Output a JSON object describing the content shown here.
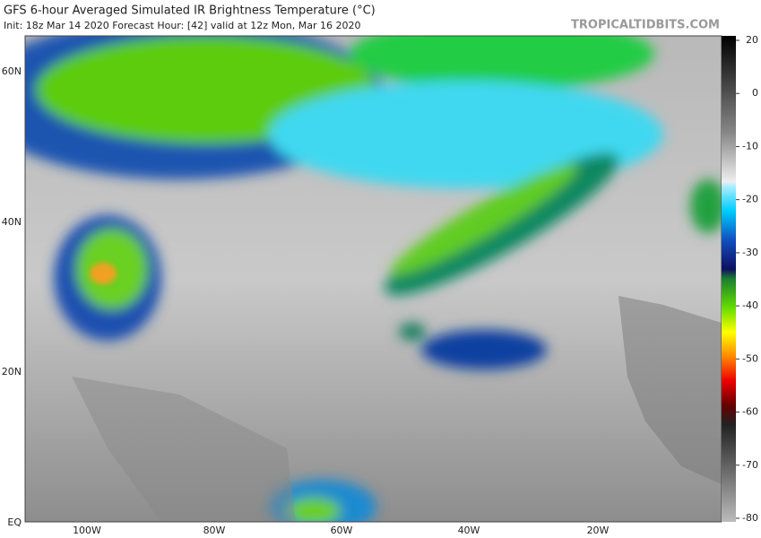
{
  "header": {
    "title": "GFS 6-hour Averaged Simulated IR Brightness Temperature (°C)",
    "subtitle": "Init: 18z Mar 14 2020   Forecast Hour: [42]   valid at 12z Mon, Mar 16 2020",
    "watermark": "TROPICALTIDBITS.COM"
  },
  "map": {
    "lat_labels": [
      "60N",
      "40N",
      "20N",
      "EQ"
    ],
    "lon_labels": [
      "100W",
      "80W",
      "60W",
      "40W",
      "20W"
    ]
  },
  "colorbar": {
    "ticks": [
      20,
      0,
      -10,
      -20,
      -30,
      -40,
      -50,
      -60,
      -70,
      -80
    ]
  }
}
